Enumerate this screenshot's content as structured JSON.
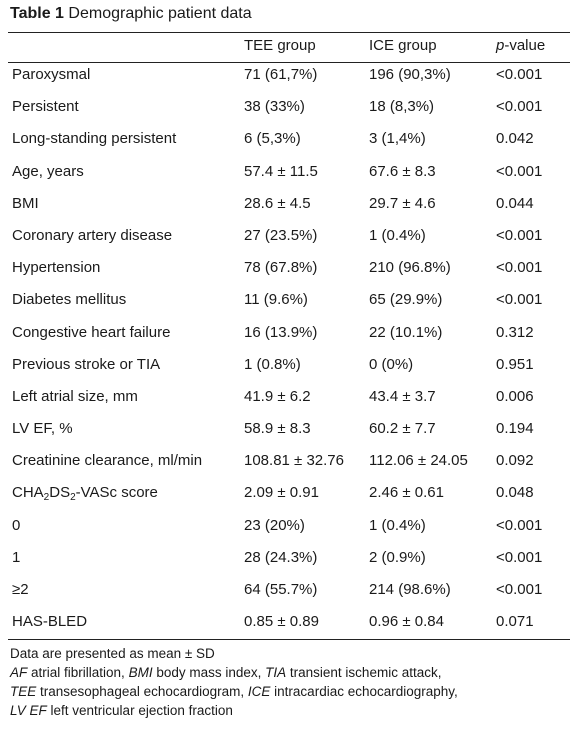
{
  "title": {
    "label": "Table 1",
    "text": "Demographic patient data"
  },
  "columns": {
    "tee": "TEE group",
    "ice": "ICE group",
    "p_prefix": "p",
    "p_suffix": "-value"
  },
  "rows": [
    {
      "label": "Paroxysmal",
      "tee": "71 (61,7%)",
      "ice": "196 (90,3%)",
      "p": "<0.001"
    },
    {
      "label": "Persistent",
      "tee": "38 (33%)",
      "ice": "18 (8,3%)",
      "p": "<0.001"
    },
    {
      "label": "Long-standing persistent",
      "tee": "6 (5,3%)",
      "ice": "3 (1,4%)",
      "p": "0.042"
    },
    {
      "label": "Age, years",
      "tee": "57.4 ± 11.5",
      "ice": "67.6 ± 8.3",
      "p": "<0.001"
    },
    {
      "label": "BMI",
      "tee": "28.6 ± 4.5",
      "ice": "29.7 ± 4.6",
      "p": "0.044"
    },
    {
      "label": "Coronary artery disease",
      "tee": "27 (23.5%)",
      "ice": "1 (0.4%)",
      "p": "<0.001"
    },
    {
      "label": "Hypertension",
      "tee": "78 (67.8%)",
      "ice": "210 (96.8%)",
      "p": "<0.001"
    },
    {
      "label": "Diabetes mellitus",
      "tee": "11 (9.6%)",
      "ice": "65 (29.9%)",
      "p": "<0.001"
    },
    {
      "label": "Congestive heart failure",
      "tee": "16 (13.9%)",
      "ice": "22 (10.1%)",
      "p": "0.312"
    },
    {
      "label": "Previous stroke or TIA",
      "tee": "1 (0.8%)",
      "ice": "0 (0%)",
      "p": "0.951"
    },
    {
      "label": "Left atrial size, mm",
      "tee": "41.9 ± 6.2",
      "ice": "43.4 ± 3.7",
      "p": "0.006"
    },
    {
      "label": "LV EF, %",
      "tee": "58.9 ± 8.3",
      "ice": "60.2 ± 7.7",
      "p": "0.194"
    },
    {
      "label": "Creatinine clearance, ml/min",
      "tee": "108.81 ± 32.76",
      "ice": "112.06 ± 24.05",
      "p": "0.092"
    },
    {
      "label_pre": "CHA",
      "label_sub1": "2",
      "label_mid": "DS",
      "label_sub2": "2",
      "label_post": "-VASc score",
      "tee": "2.09 ± 0.91",
      "ice": "2.46 ± 0.61",
      "p": "0.048"
    },
    {
      "label": "0",
      "tee": "23 (20%)",
      "ice": "1 (0.4%)",
      "p": "<0.001"
    },
    {
      "label": "1",
      "tee": "28 (24.3%)",
      "ice": "2 (0.9%)",
      "p": "<0.001"
    },
    {
      "label": "≥2",
      "tee": "64 (55.7%)",
      "ice": "214 (98.6%)",
      "p": "<0.001"
    },
    {
      "label": "HAS-BLED",
      "tee": "0.85 ± 0.89",
      "ice": "0.96 ± 0.84",
      "p": "0.071"
    }
  ],
  "footnote": {
    "line1": "Data are presented as mean ± SD",
    "abbr": [
      {
        "term": "AF",
        "def": " atrial fibrillation, "
      },
      {
        "term": "BMI",
        "def": " body mass index, "
      },
      {
        "term": "TIA",
        "def": " transient ischemic attack,"
      },
      {
        "term": "TEE",
        "def": " transesophageal echocardiogram, "
      },
      {
        "term": "ICE",
        "def": " intracardiac echocardiography,"
      },
      {
        "term": "LV EF",
        "def": " left ventricular ejection fraction"
      }
    ]
  }
}
